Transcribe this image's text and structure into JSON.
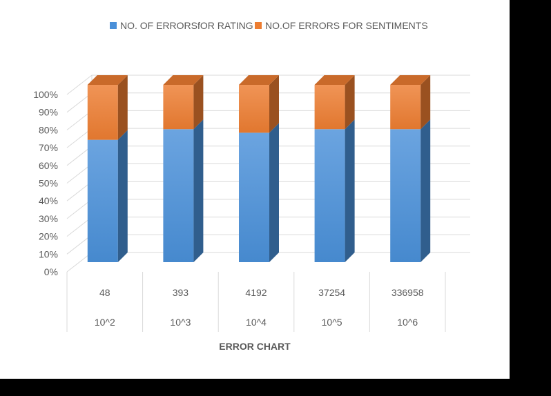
{
  "colors": {
    "rating": "#4a90d9",
    "sentiments": "#ed7d31",
    "grid": "#d9d9d9",
    "text": "#595959"
  },
  "chart_data": {
    "type": "bar",
    "stacked": "percent",
    "three_d": true,
    "title": "ERROR CHART",
    "categories": [
      [
        "48",
        "10^2"
      ],
      [
        "393",
        "10^3"
      ],
      [
        "4192",
        "10^4"
      ],
      [
        "37254",
        "10^5"
      ],
      [
        "336958",
        "10^6"
      ]
    ],
    "series": [
      {
        "name": "NO. OF ERRORSfOR RATING",
        "values": [
          69,
          75,
          73,
          75,
          75
        ]
      },
      {
        "name": "NO.OF ERRORS FOR SENTIMENTS",
        "values": [
          31,
          25,
          27,
          25,
          25
        ]
      }
    ],
    "ylim": [
      0,
      100
    ],
    "yticks": [
      "0%",
      "10%",
      "20%",
      "30%",
      "40%",
      "50%",
      "60%",
      "70%",
      "80%",
      "90%",
      "100%"
    ],
    "grid": true,
    "legend": "top-center"
  }
}
